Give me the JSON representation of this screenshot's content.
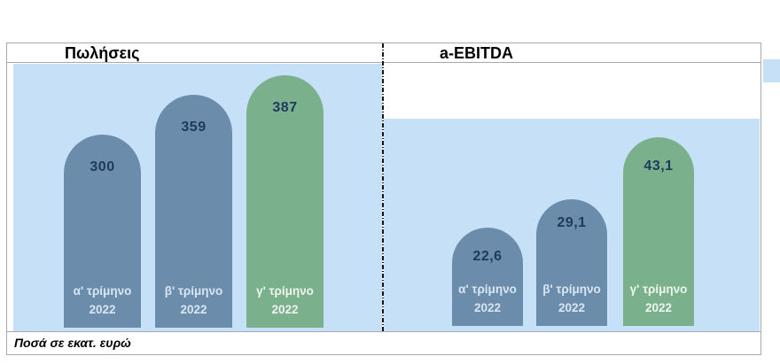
{
  "panels": [
    {
      "title": "Πωλήσεις",
      "bars": [
        {
          "value": "300",
          "quarter": "α' τρίμηνο",
          "year": "2022"
        },
        {
          "value": "359",
          "quarter": "β' τρίμηνο",
          "year": "2022"
        },
        {
          "value": "387",
          "quarter": "γ' τρίμηνο",
          "year": "2022"
        }
      ]
    },
    {
      "title": "a-EBITDA",
      "bars": [
        {
          "value": "22,6",
          "quarter": "α' τρίμηνο",
          "year": "2022"
        },
        {
          "value": "29,1",
          "quarter": "β' τρίμηνο",
          "year": "2022"
        },
        {
          "value": "43,1",
          "quarter": "γ' τρίμηνο",
          "year": "2022"
        }
      ]
    }
  ],
  "footnote": "Ποσά σε εκατ. ευρώ",
  "colors": {
    "bar_blue": "#6b8caa",
    "bar_green": "#7ab08b",
    "panel_background": "#c5e0f7",
    "value_text": "#1e3a5f",
    "frame_border": "#a9a9a9"
  },
  "chart_data": [
    {
      "type": "bar",
      "title": "Πωλήσεις",
      "categories": [
        "α' τρίμηνο 2022",
        "β' τρίμηνο 2022",
        "γ' τρίμηνο 2022"
      ],
      "values": [
        300,
        359,
        387
      ],
      "unit": "εκατ. ευρώ",
      "xlabel": "",
      "ylabel": "",
      "ylim": [
        0,
        420
      ],
      "grid": false,
      "legend": "none",
      "bar_colors": [
        "#6b8caa",
        "#6b8caa",
        "#7ab08b"
      ],
      "annotations": [
        "rounded-top bars",
        "data labels inside bar tops",
        "category labels inside bar bottoms"
      ]
    },
    {
      "type": "bar",
      "title": "a-EBITDA",
      "categories": [
        "α' τρίμηνο 2022",
        "β' τρίμηνο 2022",
        "γ' τρίμηνο 2022"
      ],
      "values": [
        22.6,
        29.1,
        43.1
      ],
      "unit": "εκατ. ευρώ",
      "xlabel": "",
      "ylabel": "",
      "ylim": [
        0,
        49
      ],
      "grid": false,
      "legend": "none",
      "bar_colors": [
        "#6b8caa",
        "#6b8caa",
        "#7ab08b"
      ],
      "annotations": [
        "rounded-top bars",
        "data labels inside bar tops",
        "category labels inside bar bottoms"
      ]
    }
  ]
}
